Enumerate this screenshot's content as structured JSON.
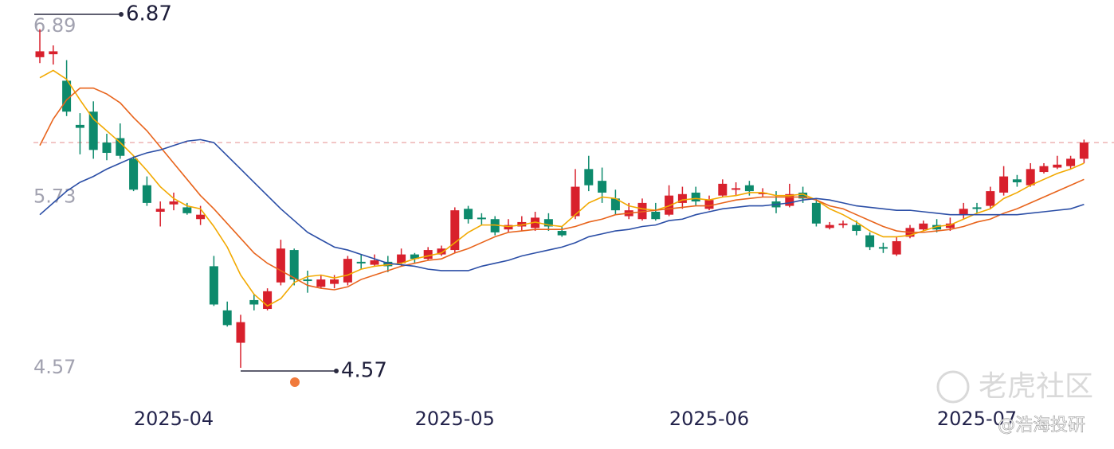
{
  "chart_data": {
    "type": "candlestick",
    "categories": [
      null,
      null,
      null,
      null,
      null,
      null,
      null,
      null,
      null,
      null,
      "2025-04",
      null,
      null,
      null,
      null,
      null,
      null,
      null,
      null,
      null,
      null,
      null,
      null,
      null,
      null,
      null,
      null,
      null,
      null,
      null,
      null,
      "2025-05",
      null,
      null,
      null,
      null,
      null,
      null,
      null,
      null,
      null,
      null,
      null,
      null,
      null,
      null,
      null,
      null,
      null,
      null,
      "2025-06",
      null,
      null,
      null,
      null,
      null,
      null,
      null,
      null,
      null,
      null,
      null,
      null,
      null,
      null,
      null,
      null,
      null,
      null,
      null,
      "2025-07",
      null,
      null,
      null,
      null,
      null,
      null,
      null,
      null
    ],
    "open": [
      6.68,
      6.7,
      6.52,
      6.22,
      6.31,
      6.1,
      6.13,
      5.99,
      5.81,
      5.63,
      5.68,
      5.66,
      5.58,
      5.26,
      4.96,
      4.74,
      5.03,
      4.97,
      5.15,
      5.37,
      5.17,
      5.12,
      5.14,
      5.15,
      5.29,
      5.27,
      5.29,
      5.28,
      5.34,
      5.31,
      5.34,
      5.37,
      5.65,
      5.59,
      5.58,
      5.51,
      5.53,
      5.52,
      5.58,
      5.5,
      5.6,
      5.92,
      5.84,
      5.72,
      5.6,
      5.58,
      5.63,
      5.61,
      5.69,
      5.76,
      5.65,
      5.74,
      5.78,
      5.81,
      5.76,
      5.7,
      5.67,
      5.76,
      5.69,
      5.52,
      5.54,
      5.54,
      5.47,
      5.39,
      5.34,
      5.46,
      5.51,
      5.54,
      5.52,
      5.61,
      5.66,
      5.67,
      5.76,
      5.85,
      5.81,
      5.9,
      5.93,
      5.94,
      5.99
    ],
    "high": [
      6.87,
      6.76,
      6.66,
      6.3,
      6.38,
      6.16,
      6.23,
      6.01,
      5.87,
      5.7,
      5.76,
      5.69,
      5.67,
      5.33,
      5.02,
      4.93,
      5.07,
      5.11,
      5.44,
      5.38,
      5.23,
      5.2,
      5.2,
      5.33,
      5.34,
      5.34,
      5.33,
      5.38,
      5.35,
      5.39,
      5.4,
      5.66,
      5.67,
      5.62,
      5.6,
      5.58,
      5.6,
      5.63,
      5.62,
      5.53,
      5.92,
      6.01,
      5.93,
      5.78,
      5.69,
      5.72,
      5.69,
      5.81,
      5.8,
      5.8,
      5.74,
      5.85,
      5.83,
      5.84,
      5.79,
      5.77,
      5.82,
      5.8,
      5.72,
      5.56,
      5.57,
      5.57,
      5.49,
      5.42,
      5.46,
      5.54,
      5.57,
      5.58,
      5.59,
      5.69,
      5.69,
      5.8,
      5.94,
      5.88,
      5.96,
      5.96,
      6.01,
      6.01,
      6.12
    ],
    "low": [
      6.64,
      6.63,
      6.28,
      6.02,
      5.99,
      5.98,
      5.99,
      5.77,
      5.67,
      5.53,
      5.64,
      5.61,
      5.54,
      4.99,
      4.85,
      4.57,
      4.96,
      4.96,
      5.13,
      5.13,
      5.08,
      5.11,
      5.11,
      5.13,
      5.24,
      5.26,
      5.22,
      5.26,
      5.28,
      5.3,
      5.33,
      5.35,
      5.55,
      5.54,
      5.47,
      5.49,
      5.5,
      5.5,
      5.5,
      5.46,
      5.58,
      5.77,
      5.69,
      5.61,
      5.58,
      5.57,
      5.57,
      5.6,
      5.65,
      5.67,
      5.64,
      5.73,
      5.74,
      5.74,
      5.73,
      5.62,
      5.66,
      5.69,
      5.53,
      5.51,
      5.52,
      5.47,
      5.37,
      5.35,
      5.33,
      5.45,
      5.5,
      5.49,
      5.5,
      5.58,
      5.62,
      5.65,
      5.74,
      5.8,
      5.8,
      5.89,
      5.92,
      5.92,
      5.96
    ],
    "close": [
      6.72,
      6.72,
      6.31,
      6.2,
      6.05,
      6.03,
      6.01,
      5.78,
      5.69,
      5.65,
      5.7,
      5.62,
      5.61,
      5.0,
      4.86,
      4.88,
      5.0,
      5.09,
      5.38,
      5.17,
      5.16,
      5.17,
      5.17,
      5.31,
      5.28,
      5.3,
      5.26,
      5.34,
      5.31,
      5.37,
      5.38,
      5.64,
      5.58,
      5.58,
      5.49,
      5.54,
      5.56,
      5.59,
      5.53,
      5.47,
      5.8,
      5.81,
      5.76,
      5.64,
      5.64,
      5.69,
      5.58,
      5.74,
      5.75,
      5.7,
      5.71,
      5.82,
      5.79,
      5.77,
      5.76,
      5.66,
      5.75,
      5.72,
      5.55,
      5.54,
      5.55,
      5.5,
      5.39,
      5.38,
      5.43,
      5.52,
      5.55,
      5.51,
      5.55,
      5.65,
      5.65,
      5.77,
      5.87,
      5.83,
      5.92,
      5.94,
      5.95,
      5.99,
      6.1
    ],
    "up_color": "#d8202c",
    "down_color": "#0d8a6c",
    "ma_lines": [
      {
        "color": "#f2a900",
        "values": [
          6.54,
          6.59,
          6.53,
          6.39,
          6.26,
          6.18,
          6.1,
          6.01,
          5.91,
          5.8,
          5.72,
          5.67,
          5.65,
          5.53,
          5.39,
          5.2,
          5.07,
          4.99,
          5.04,
          5.15,
          5.19,
          5.2,
          5.18,
          5.2,
          5.24,
          5.26,
          5.27,
          5.28,
          5.31,
          5.33,
          5.35,
          5.42,
          5.49,
          5.54,
          5.54,
          5.53,
          5.54,
          5.56,
          5.54,
          5.53,
          5.61,
          5.69,
          5.73,
          5.72,
          5.67,
          5.65,
          5.64,
          5.67,
          5.71,
          5.72,
          5.71,
          5.73,
          5.74,
          5.76,
          5.76,
          5.74,
          5.74,
          5.75,
          5.71,
          5.65,
          5.61,
          5.56,
          5.5,
          5.46,
          5.46,
          5.47,
          5.5,
          5.53,
          5.54,
          5.58,
          5.62,
          5.65,
          5.72,
          5.76,
          5.81,
          5.85,
          5.89,
          5.92,
          5.96
        ]
      },
      {
        "color": "#e8641c",
        "values": [
          6.08,
          6.26,
          6.39,
          6.47,
          6.47,
          6.43,
          6.37,
          6.27,
          6.18,
          6.07,
          5.96,
          5.85,
          5.74,
          5.65,
          5.55,
          5.45,
          5.35,
          5.28,
          5.23,
          5.18,
          5.13,
          5.11,
          5.1,
          5.12,
          5.17,
          5.2,
          5.23,
          5.26,
          5.28,
          5.3,
          5.31,
          5.35,
          5.38,
          5.42,
          5.46,
          5.49,
          5.5,
          5.51,
          5.51,
          5.51,
          5.53,
          5.56,
          5.58,
          5.61,
          5.62,
          5.63,
          5.64,
          5.65,
          5.66,
          5.67,
          5.67,
          5.69,
          5.71,
          5.72,
          5.73,
          5.73,
          5.73,
          5.73,
          5.71,
          5.67,
          5.65,
          5.61,
          5.57,
          5.53,
          5.5,
          5.49,
          5.49,
          5.5,
          5.51,
          5.53,
          5.56,
          5.58,
          5.62,
          5.65,
          5.69,
          5.73,
          5.77,
          5.81,
          5.85
        ]
      },
      {
        "color": "#2b4ea6",
        "values": [
          5.61,
          5.69,
          5.77,
          5.83,
          5.87,
          5.92,
          5.96,
          6.0,
          6.03,
          6.05,
          6.08,
          6.11,
          6.12,
          6.1,
          6.01,
          5.92,
          5.83,
          5.74,
          5.65,
          5.57,
          5.49,
          5.44,
          5.39,
          5.37,
          5.34,
          5.31,
          5.28,
          5.27,
          5.26,
          5.24,
          5.23,
          5.23,
          5.23,
          5.26,
          5.28,
          5.3,
          5.33,
          5.35,
          5.37,
          5.39,
          5.42,
          5.46,
          5.48,
          5.5,
          5.51,
          5.53,
          5.54,
          5.57,
          5.58,
          5.61,
          5.63,
          5.65,
          5.66,
          5.67,
          5.67,
          5.68,
          5.69,
          5.71,
          5.72,
          5.71,
          5.69,
          5.67,
          5.66,
          5.65,
          5.64,
          5.64,
          5.63,
          5.62,
          5.61,
          5.61,
          5.61,
          5.61,
          5.61,
          5.61,
          5.62,
          5.63,
          5.64,
          5.65,
          5.68
        ]
      }
    ],
    "ylim": [
      4.57,
      6.89
    ],
    "yticks": [
      4.57,
      5.73,
      6.89
    ],
    "max_label": 6.87,
    "min_label": 4.57
  },
  "watermark": {
    "brand": "老虎社区",
    "author": "@浩海投研"
  }
}
